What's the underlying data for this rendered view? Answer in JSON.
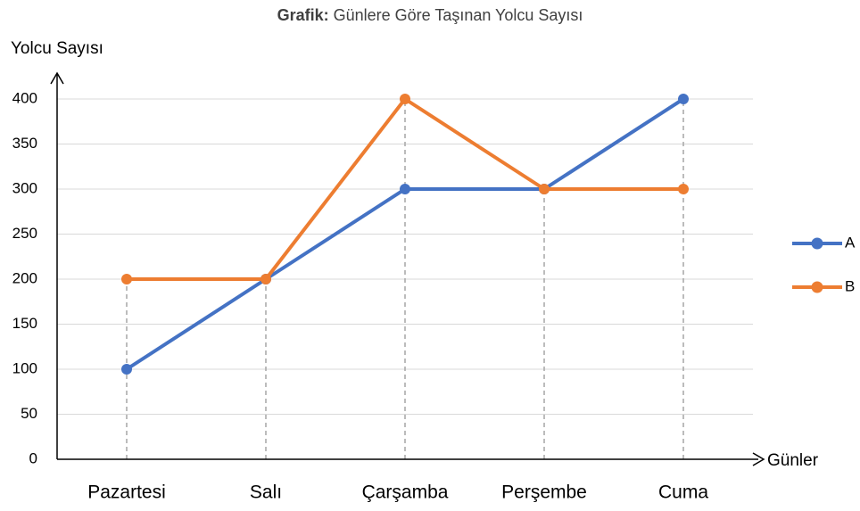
{
  "chart_data": {
    "type": "line",
    "title_label": "Grafik:",
    "title": "Günlere Göre Taşınan Yolcu Sayısı",
    "y_label": "Yolcu Sayısı",
    "x_label": "Günler",
    "categories": [
      "Pazartesi",
      "Salı",
      "Çarşamba",
      "Perşembe",
      "Cuma"
    ],
    "series": [
      {
        "name": "A",
        "color": "#4472c4",
        "values": [
          100,
          200,
          300,
          300,
          400
        ]
      },
      {
        "name": "B",
        "color": "#ed7d31",
        "values": [
          200,
          200,
          400,
          300,
          300
        ]
      }
    ],
    "ylim": [
      0,
      400
    ],
    "yticks": [
      0,
      50,
      100,
      150,
      200,
      250,
      300,
      350,
      400
    ],
    "grid": true,
    "legend": "right"
  }
}
